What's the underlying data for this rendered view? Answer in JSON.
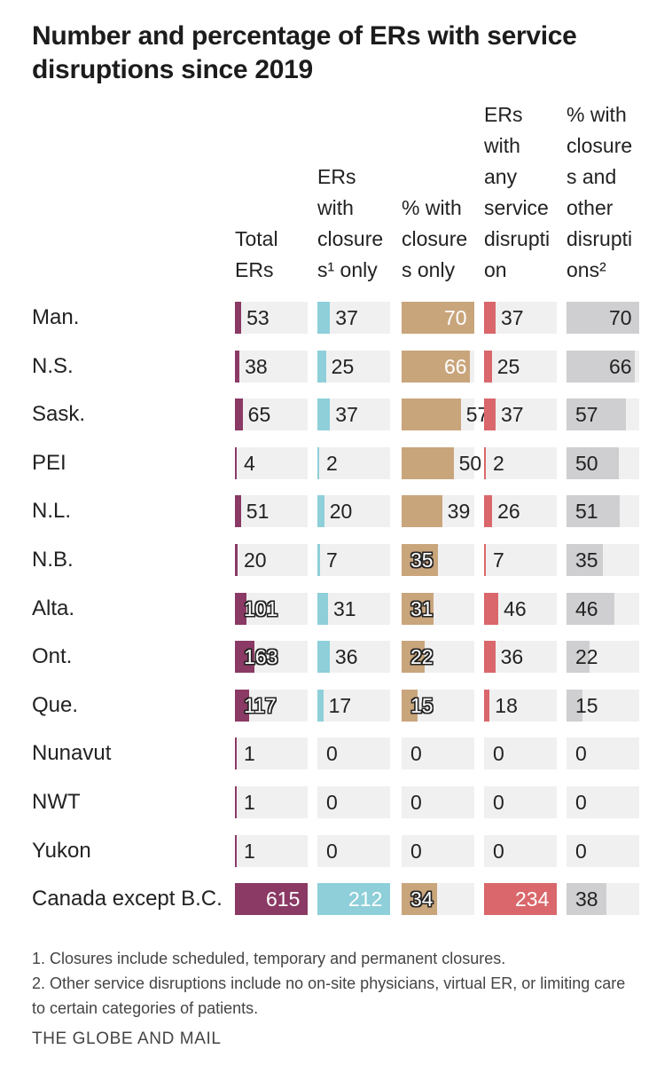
{
  "title_lines": [
    "Number and percentage of ERs with service",
    "disruptions since 2019"
  ],
  "columns": [
    {
      "key": "total",
      "header": "Total\nERs",
      "color": "#8a3a64"
    },
    {
      "key": "closures",
      "header": "ERs\nwith\nclosure\ns¹ only",
      "color": "#8ecfd9"
    },
    {
      "key": "pct_closures",
      "header": "% with\nclosure\ns only",
      "color": "#c9a57c"
    },
    {
      "key": "any",
      "header": "ERs\nwith\nany\nservice\ndisrupti\non",
      "color": "#d9676b"
    },
    {
      "key": "pct_other",
      "header": "% with\nclosure\ns and\nother\ndisrupti\nons²",
      "color": "#cfcfd1"
    }
  ],
  "chart_data": {
    "type": "table",
    "row_labels": [
      "Man.",
      "N.S.",
      "Sask.",
      "PEI",
      "N.L.",
      "N.B.",
      "Alta.",
      "Ont.",
      "Que.",
      "Nunavut",
      "NWT",
      "Yukon",
      "Canada except B.C."
    ],
    "series": [
      {
        "column": "Total ERs",
        "values": [
          53,
          38,
          65,
          4,
          51,
          20,
          101,
          163,
          117,
          1,
          1,
          1,
          615
        ]
      },
      {
        "column": "ERs with closures¹ only",
        "values": [
          37,
          25,
          37,
          2,
          20,
          7,
          31,
          36,
          17,
          0,
          0,
          0,
          212
        ]
      },
      {
        "column": "% with closures only",
        "values": [
          70,
          66,
          57,
          50,
          39,
          35,
          31,
          22,
          15,
          0,
          0,
          0,
          34
        ]
      },
      {
        "column": "ERs with any service disruption",
        "values": [
          37,
          25,
          37,
          2,
          26,
          7,
          46,
          36,
          18,
          0,
          0,
          0,
          234
        ]
      },
      {
        "column": "% with closures and other disruptions²",
        "values": [
          70,
          66,
          57,
          50,
          51,
          35,
          46,
          22,
          15,
          0,
          0,
          0,
          38
        ]
      }
    ],
    "scale_max": [
      615,
      212,
      70,
      234,
      70
    ]
  },
  "footnotes": [
    "1. Closures include scheduled, temporary and permanent closures.",
    "2. Other service disruptions include no on-site physicians, virtual ER, or limiting care to certain categories of patients."
  ],
  "source": "THE GLOBE AND MAIL"
}
